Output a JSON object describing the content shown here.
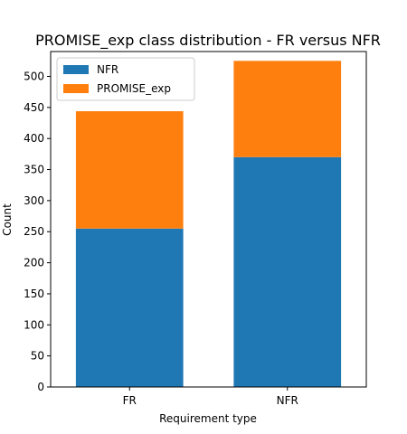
{
  "chart_data": {
    "type": "bar",
    "stacked": true,
    "title": "PROMISE_exp class distribution - FR versus NFR",
    "xlabel": "Requirement type",
    "ylabel": "Count",
    "categories": [
      "FR",
      "NFR"
    ],
    "series": [
      {
        "name": "NFR",
        "values": [
          255,
          370
        ],
        "color": "#1f77b4"
      },
      {
        "name": "PROMISE_exp",
        "values": [
          189,
          155
        ],
        "color": "#ff7f0e"
      }
    ],
    "ylim": [
      0,
      540
    ],
    "yticks": [
      0,
      50,
      100,
      150,
      200,
      250,
      300,
      350,
      400,
      450,
      500
    ],
    "grid": false,
    "legend_position": "top-left"
  }
}
